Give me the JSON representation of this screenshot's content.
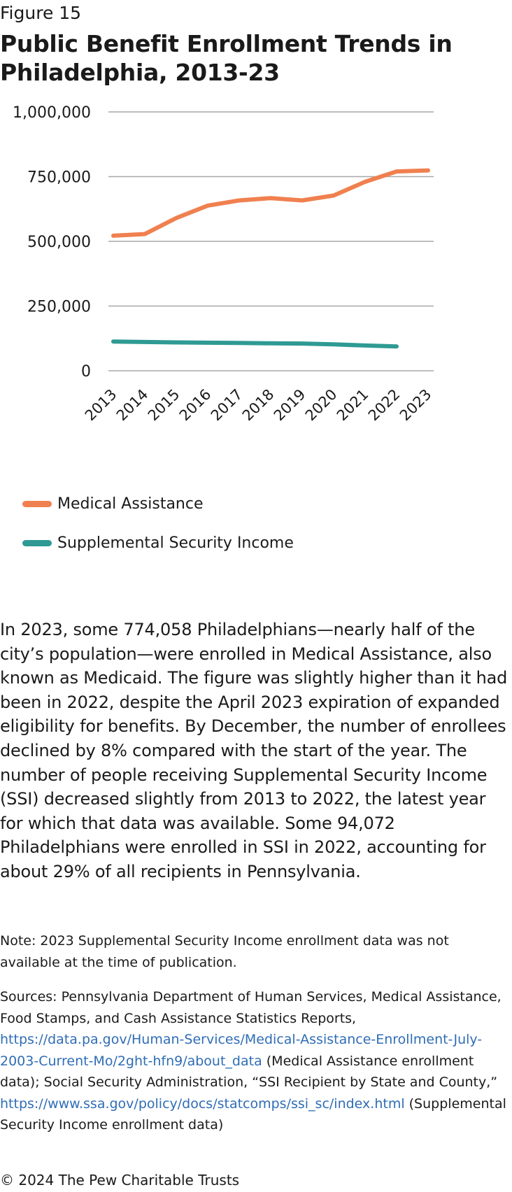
{
  "header": {
    "figure_label": "Figure 15",
    "title": "Public Benefit Enrollment Trends in Philadelphia, 2013-23"
  },
  "chart_data": {
    "type": "line",
    "title": "Public Benefit Enrollment Trends in Philadelphia, 2013-23",
    "xlabel": "",
    "ylabel": "",
    "ylim": [
      0,
      1000000
    ],
    "yticks": [
      0,
      250000,
      500000,
      750000,
      1000000
    ],
    "ytick_labels": [
      "0",
      "250,000",
      "500,000",
      "750,000",
      "1,000,000"
    ],
    "grid": true,
    "legend_position": "bottom-left",
    "categories": [
      "2013",
      "2014",
      "2015",
      "2016",
      "2017",
      "2018",
      "2019",
      "2020",
      "2021",
      "2022",
      "2023"
    ],
    "series": [
      {
        "name": "Medical Assistance",
        "color": "#f0804f",
        "values": [
          522000,
          528000,
          590000,
          638000,
          658000,
          667000,
          658000,
          677000,
          730000,
          770000,
          774058
        ]
      },
      {
        "name": "Supplemental Security Income",
        "color": "#2e9a93",
        "values": [
          113000,
          111000,
          109500,
          108500,
          107500,
          106000,
          105000,
          102000,
          97500,
          94072,
          null
        ]
      }
    ]
  },
  "body": {
    "paragraph": "In 2023, some 774,058 Philadelphians—nearly half of the city’s population—were enrolled in Medical Assistance, also known as Medicaid. The figure was slightly higher than it had been in 2022, despite the April 2023 expiration of expanded eligibility for benefits. By December, the number of enrollees declined by 8% compared with the start of the year. The number of people receiving Supplemental Security Income (SSI) decreased slightly from 2013 to 2022, the latest year for which that data was available. Some 94,072 Philadelphians were enrolled in SSI in 2022, accounting for about 29% of all recipients in Pennsylvania."
  },
  "footer": {
    "note": "Note: 2023 Supplemental Security Income enrollment data was not available at the time of publication.",
    "sources_prefix": "Sources: Pennsylvania Department of Human Services, Medical Assistance, Food Stamps, and Cash Assistance Statistics Reports, ",
    "sources_link1": "https://data.pa.gov/Human-Services/Medical-Assistance-Enrollment-July-2003-Current-Mo/2ght-hfn9/about_data",
    "sources_middle": " (Medical Assistance enrollment data); Social Security Administration, “SSI Recipient by State and County,” ",
    "sources_link2": "https://www.ssa.gov/policy/docs/statcomps/ssi_sc/index.html",
    "sources_suffix": " (Supplemental Security Income enrollment data)",
    "copyright": "© 2024 The Pew Charitable Trusts"
  }
}
